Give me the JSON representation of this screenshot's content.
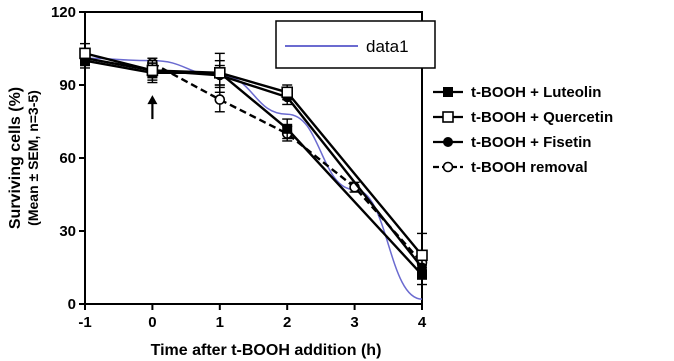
{
  "chart_data": {
    "type": "line",
    "xlabel": "Time after t-BOOH addition (h)",
    "ylabel": "Surviving cells (%)",
    "ylabel_sub": "(Mean ± SEM, n=3-5)",
    "xlim": [
      -1,
      4
    ],
    "ylim": [
      0,
      120
    ],
    "x_ticks": [
      -1,
      0,
      1,
      2,
      3,
      4
    ],
    "y_ticks": [
      0,
      30,
      60,
      90,
      120
    ],
    "grid": false,
    "legend_position": "right",
    "series": [
      {
        "name": "t-BOOH + Luteolin",
        "marker": "filled-square",
        "line": "solid",
        "x": [
          -1,
          0,
          1,
          2,
          4
        ],
        "y": [
          100,
          95,
          95,
          72,
          12
        ],
        "err": [
          3,
          4,
          5,
          4,
          4
        ]
      },
      {
        "name": "t-BOOH + Quercetin",
        "marker": "open-square",
        "line": "solid",
        "x": [
          -1,
          0,
          1,
          2,
          4
        ],
        "y": [
          103,
          96,
          95,
          87,
          20
        ],
        "err": [
          4,
          4,
          8,
          3,
          9
        ]
      },
      {
        "name": "t-BOOH + Fisetin",
        "marker": "filled-circle",
        "line": "solid",
        "x": [
          -1,
          0,
          1,
          2,
          4
        ],
        "y": [
          101,
          96,
          94,
          85,
          15
        ],
        "err": [
          3,
          3,
          4,
          3,
          4
        ]
      },
      {
        "name": "t-BOOH removal",
        "marker": "open-circle",
        "line": "dashed",
        "x": [
          0,
          1,
          2,
          3,
          4
        ],
        "y": [
          99,
          84,
          70,
          48,
          17
        ],
        "err": [
          2,
          5,
          3,
          2,
          3
        ]
      }
    ],
    "inset": {
      "label": "data1",
      "color": "#6b6bd0",
      "curve": {
        "x": [
          -1,
          0,
          1,
          2,
          3,
          4
        ],
        "y": [
          101,
          100,
          94,
          78,
          47,
          2
        ]
      }
    },
    "annotation": {
      "symbol": "arrow-up",
      "x": 0,
      "y_from": 76,
      "y_to": 85
    }
  }
}
